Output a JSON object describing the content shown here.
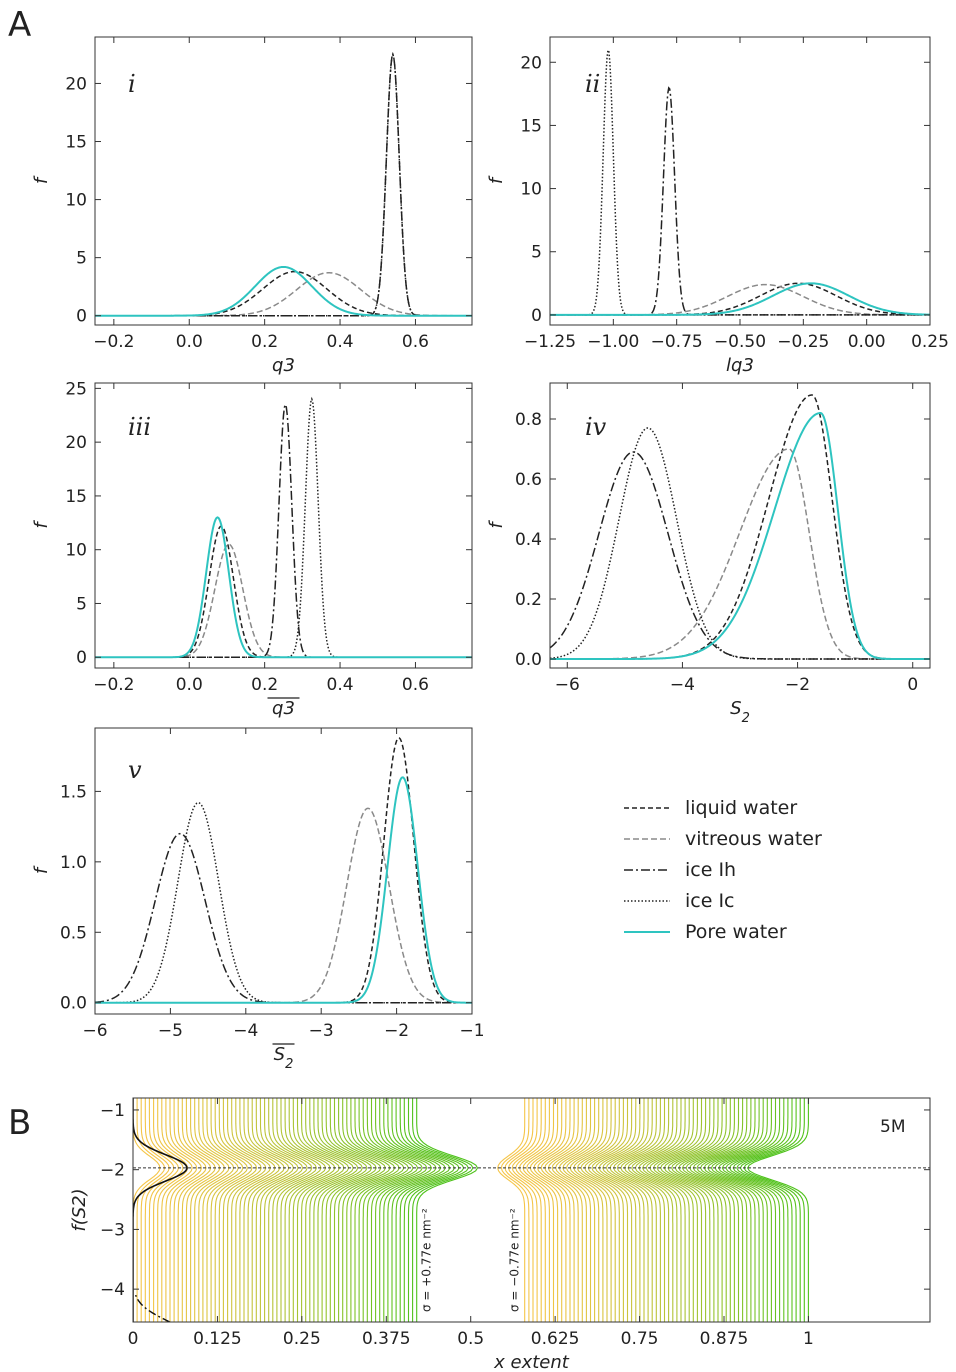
{
  "panel_labels": {
    "a": "A",
    "b": "B"
  },
  "legend": [
    {
      "name": "liquid water",
      "color": "#222222",
      "dash": "5,3"
    },
    {
      "name": "vitreous water",
      "color": "#8a8a8a",
      "dash": "6,3"
    },
    {
      "name": "ice Ih",
      "color": "#222222",
      "dash": "9,3,2,3"
    },
    {
      "name": "ice Ic",
      "color": "#222222",
      "dash": "1.5,2"
    },
    {
      "name": "Pore water",
      "color": "#2ec4c0",
      "dash": ""
    }
  ],
  "chart_data": [
    {
      "type": "line",
      "panel": "i",
      "xlabel": "q3",
      "ylabel": "f",
      "xlim": [
        -0.25,
        0.75
      ],
      "ylim": [
        -0.8,
        24.0
      ],
      "xticks": [
        -0.2,
        0.0,
        0.2,
        0.4,
        0.6
      ],
      "xticklabels": [
        "−0.2",
        "0.0",
        "0.2",
        "0.4",
        "0.6"
      ],
      "yticks": [
        0,
        5,
        10,
        15,
        20
      ],
      "yticklabels": [
        "0",
        "5",
        "10",
        "15",
        "20"
      ],
      "series": [
        {
          "style": "liquid",
          "type": "gauss",
          "peaks": [
            {
              "mu": 0.28,
              "sigma": 0.085,
              "amp": 3.8
            }
          ]
        },
        {
          "style": "vitreous",
          "type": "gauss",
          "peaks": [
            {
              "mu": 0.37,
              "sigma": 0.085,
              "amp": 3.7
            }
          ]
        },
        {
          "style": "ice_ih",
          "type": "gauss",
          "peaks": [
            {
              "mu": 0.54,
              "sigma": 0.017,
              "amp": 22.5
            }
          ]
        },
        {
          "style": "ice_ic",
          "type": "gauss",
          "peaks": [
            {
              "mu": 0.54,
              "sigma": 0.017,
              "amp": 22.5
            }
          ]
        },
        {
          "style": "pore",
          "type": "gauss",
          "peaks": [
            {
              "mu": 0.25,
              "sigma": 0.075,
              "amp": 4.2
            }
          ]
        }
      ]
    },
    {
      "type": "line",
      "panel": "ii",
      "xlabel": "lq3",
      "ylabel": "f",
      "xlim": [
        -1.25,
        0.25
      ],
      "ylim": [
        -0.8,
        22.0
      ],
      "xticks": [
        -1.25,
        -1.0,
        -0.75,
        -0.5,
        -0.25,
        0.0,
        0.25
      ],
      "xticklabels": [
        "−1.25",
        "−1.00",
        "−0.75",
        "−0.50",
        "−0.25",
        "0.00",
        "0.25"
      ],
      "yticks": [
        0,
        5,
        10,
        15,
        20
      ],
      "yticklabels": [
        "0",
        "5",
        "10",
        "15",
        "20"
      ],
      "series": [
        {
          "style": "liquid",
          "type": "gauss",
          "peaks": [
            {
              "mu": -0.27,
              "sigma": 0.15,
              "amp": 2.5
            }
          ]
        },
        {
          "style": "vitreous",
          "type": "gauss",
          "peaks": [
            {
              "mu": -0.4,
              "sigma": 0.15,
              "amp": 2.4
            }
          ]
        },
        {
          "style": "ice_ih",
          "type": "gauss",
          "peaks": [
            {
              "mu": -0.78,
              "sigma": 0.022,
              "amp": 18.0
            }
          ]
        },
        {
          "style": "ice_ic",
          "type": "gauss",
          "peaks": [
            {
              "mu": -1.02,
              "sigma": 0.02,
              "amp": 21.0
            }
          ]
        },
        {
          "style": "pore",
          "type": "gauss",
          "peaks": [
            {
              "mu": -0.22,
              "sigma": 0.15,
              "amp": 2.5
            }
          ]
        }
      ]
    },
    {
      "type": "line",
      "panel": "iii",
      "xlabel": "q3",
      "ylabel": "f",
      "xlim": [
        -0.25,
        0.75
      ],
      "ylim": [
        -1.0,
        25.5
      ],
      "xticks": [
        -0.2,
        0.0,
        0.2,
        0.4,
        0.6
      ],
      "xticklabels": [
        "−0.2",
        "0.0",
        "0.2",
        "0.4",
        "0.6"
      ],
      "yticks": [
        0,
        5,
        10,
        15,
        20,
        25
      ],
      "yticklabels": [
        "0",
        "5",
        "10",
        "15",
        "20",
        "25"
      ],
      "series": [
        {
          "style": "liquid",
          "type": "gauss",
          "peaks": [
            {
              "mu": 0.085,
              "sigma": 0.032,
              "amp": 12.2
            }
          ]
        },
        {
          "style": "vitreous",
          "type": "gauss",
          "peaks": [
            {
              "mu": 0.105,
              "sigma": 0.037,
              "amp": 10.5
            }
          ]
        },
        {
          "style": "ice_ih",
          "type": "gauss",
          "peaks": [
            {
              "mu": 0.255,
              "sigma": 0.017,
              "amp": 23.5
            }
          ]
        },
        {
          "style": "ice_ic",
          "type": "gauss",
          "peaks": [
            {
              "mu": 0.325,
              "sigma": 0.017,
              "amp": 24.0
            }
          ]
        },
        {
          "style": "pore",
          "type": "gauss",
          "peaks": [
            {
              "mu": 0.075,
              "sigma": 0.03,
              "amp": 13.0
            }
          ]
        }
      ]
    },
    {
      "type": "line",
      "panel": "iv",
      "xlabel": "S2",
      "ylabel": "f",
      "xlim": [
        -6.3,
        0.3
      ],
      "ylim": [
        -0.03,
        0.92
      ],
      "xticks": [
        -6,
        -4,
        -2,
        0
      ],
      "xticklabels": [
        "−6",
        "−4",
        "−2",
        "0"
      ],
      "yticks": [
        0.0,
        0.2,
        0.4,
        0.6,
        0.8
      ],
      "yticklabels": [
        "0.0",
        "0.2",
        "0.4",
        "0.6",
        "0.8"
      ],
      "series": [
        {
          "style": "liquid",
          "type": "skew",
          "peaks": [
            {
              "mu": -1.75,
              "left": 0.75,
              "right": 0.35,
              "amp": 0.88
            }
          ]
        },
        {
          "style": "vitreous",
          "type": "skew",
          "peaks": [
            {
              "mu": -2.15,
              "left": 0.85,
              "right": 0.35,
              "amp": 0.7
            }
          ]
        },
        {
          "style": "ice_ih",
          "type": "gauss",
          "peaks": [
            {
              "mu": -4.85,
              "sigma": 0.6,
              "amp": 0.69
            }
          ]
        },
        {
          "style": "ice_ic",
          "type": "gauss",
          "peaks": [
            {
              "mu": -4.6,
              "sigma": 0.5,
              "amp": 0.77
            }
          ]
        },
        {
          "style": "pore",
          "type": "skew",
          "peaks": [
            {
              "mu": -1.6,
              "left": 0.8,
              "right": 0.3,
              "amp": 0.82
            }
          ]
        }
      ]
    },
    {
      "type": "line",
      "panel": "v",
      "xlabel": "S2",
      "ylabel": "f",
      "xlim": [
        -6.0,
        -1.0
      ],
      "ylim": [
        -0.08,
        1.95
      ],
      "xticks": [
        -6,
        -5,
        -4,
        -3,
        -2,
        -1
      ],
      "xticklabels": [
        "−6",
        "−5",
        "−4",
        "−3",
        "−2",
        "−1"
      ],
      "yticks": [
        0.0,
        0.5,
        1.0,
        1.5
      ],
      "yticklabels": [
        "0.0",
        "0.5",
        "1.0",
        "1.5"
      ],
      "series": [
        {
          "style": "liquid",
          "type": "gauss",
          "peaks": [
            {
              "mu": -1.97,
              "sigma": 0.2,
              "amp": 1.88
            }
          ]
        },
        {
          "style": "vitreous",
          "type": "gauss",
          "peaks": [
            {
              "mu": -2.38,
              "sigma": 0.28,
              "amp": 1.38
            }
          ]
        },
        {
          "style": "ice_ih",
          "type": "gauss",
          "peaks": [
            {
              "mu": -4.87,
              "sigma": 0.33,
              "amp": 1.2
            }
          ]
        },
        {
          "style": "ice_ic",
          "type": "gauss",
          "peaks": [
            {
              "mu": -4.63,
              "sigma": 0.27,
              "amp": 1.42
            }
          ]
        },
        {
          "style": "pore",
          "type": "gauss",
          "peaks": [
            {
              "mu": -1.92,
              "sigma": 0.2,
              "amp": 1.6
            }
          ]
        }
      ]
    },
    {
      "type": "line",
      "panel": "B",
      "xlabel": "x extent",
      "ylabel": "f(S2)",
      "annotation": "5M",
      "xlim": [
        0.0,
        1.18
      ],
      "ylim": [
        -4.55,
        -0.8
      ],
      "xticks": [
        0,
        0.125,
        0.25,
        0.375,
        0.5,
        0.625,
        0.75,
        0.875,
        1
      ],
      "xticklabels": [
        "0",
        "0.125",
        "0.25",
        "0.375",
        "0.5",
        "0.625",
        "0.75",
        "0.875",
        "1"
      ],
      "yticks": [
        -1,
        -2,
        -3,
        -4
      ],
      "yticklabels": [
        "−1",
        "−2",
        "−3",
        "−4"
      ],
      "reference_line_y": -1.97,
      "charge_labels": [
        "σ = +0.77e nm⁻²",
        "σ = −0.77e nm⁻²"
      ],
      "left_slab_x": [
        0.0,
        0.42
      ],
      "right_slab_x": [
        0.58,
        1.0
      ],
      "colors": {
        "center": "#4ec21a",
        "edge": "#f5c548"
      }
    }
  ]
}
